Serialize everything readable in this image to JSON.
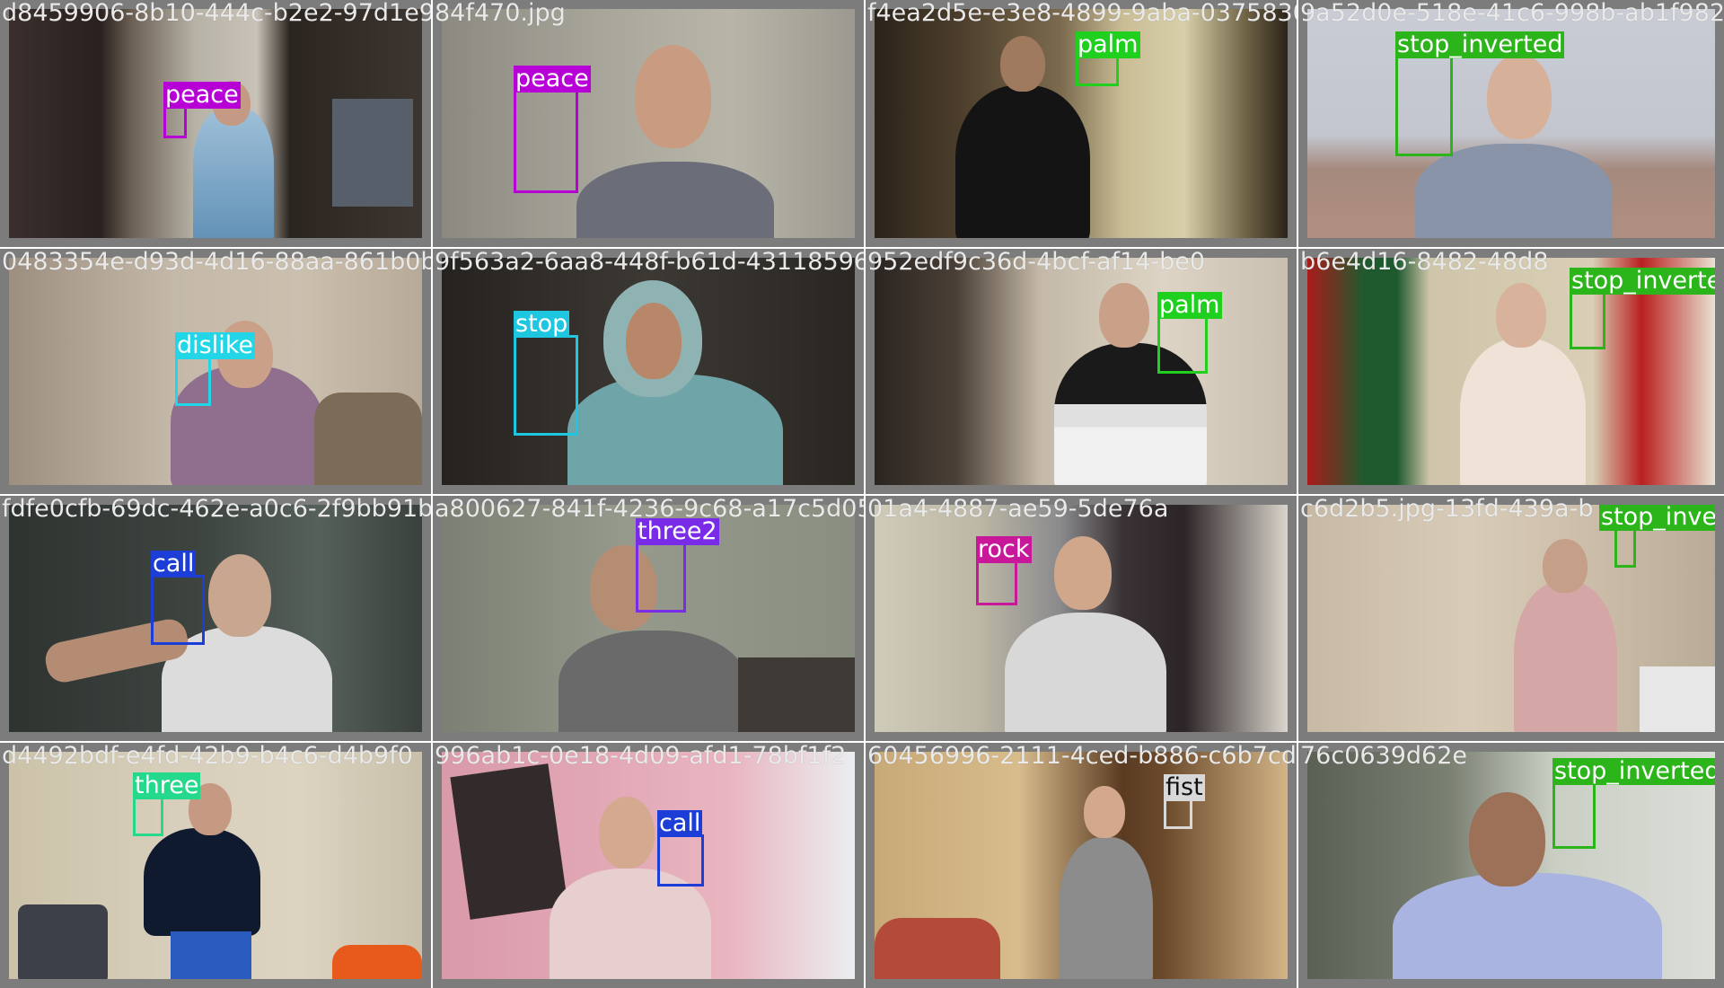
{
  "tiles": [
    {
      "filename": "d8459906-8b10-444c-b2e2-97d1e9",
      "label": "peace",
      "color": "#b600d6"
    },
    {
      "filename": "84f470.jpg",
      "label": "peace",
      "color": "#b600d6"
    },
    {
      "filename": "f4ea2d5e-e3e8-4899-9aba-0375830",
      "label": "palm",
      "color": "#1fd01f"
    },
    {
      "filename": "9a52d0e-518e-41c6-998b-ab1f982",
      "label": "stop_inverted",
      "color": "#2bb51a"
    },
    {
      "filename": "0483354e-d93d-4d16-88aa-861b0b",
      "label": "dislike",
      "color": "#22d6e8"
    },
    {
      "filename": "9f563a2-6aa8-448f-b61d-43118596",
      "label": "stop",
      "color": "#1ec7df"
    },
    {
      "filename": "952edf9c36d-4bcf-af14-be0",
      "label": "palm",
      "color": "#1fd01f"
    },
    {
      "filename": "b6e4d16-8482-48d8",
      "label": "stop_inverted",
      "color": "#2bb51a"
    },
    {
      "filename": "fdfe0cfb-69dc-462e-a0c6-2f9bb91b",
      "label": "call",
      "color": "#1d3ed6"
    },
    {
      "filename": "a800627-841f-4236-9c68-a17c5d05",
      "label": "three2",
      "color": "#7a2be8"
    },
    {
      "filename": "01a4-4887-ae59-5de76a",
      "label": "rock",
      "color": "#c8189a"
    },
    {
      "filename": "c6d2b5.jpg-13fd-439a-b",
      "label": "stop_inverted",
      "color": "#2bb51a"
    },
    {
      "filename": "d4492bdf-e4fd-42b9-b4c6-d4b9f0",
      "label": "three",
      "color": "#25d98c"
    },
    {
      "filename": "996ab1c-0e18-4d09-afd1-78bf1f2",
      "label": "call",
      "color": "#1d3ed6"
    },
    {
      "filename": "60456996-2111-4ced-b886-c6b7cd",
      "label": "fist",
      "color": "#d8d8d8"
    },
    {
      "filename": "76c0639d62e",
      "label": "stop_inverted",
      "color": "#2bb51a"
    }
  ]
}
